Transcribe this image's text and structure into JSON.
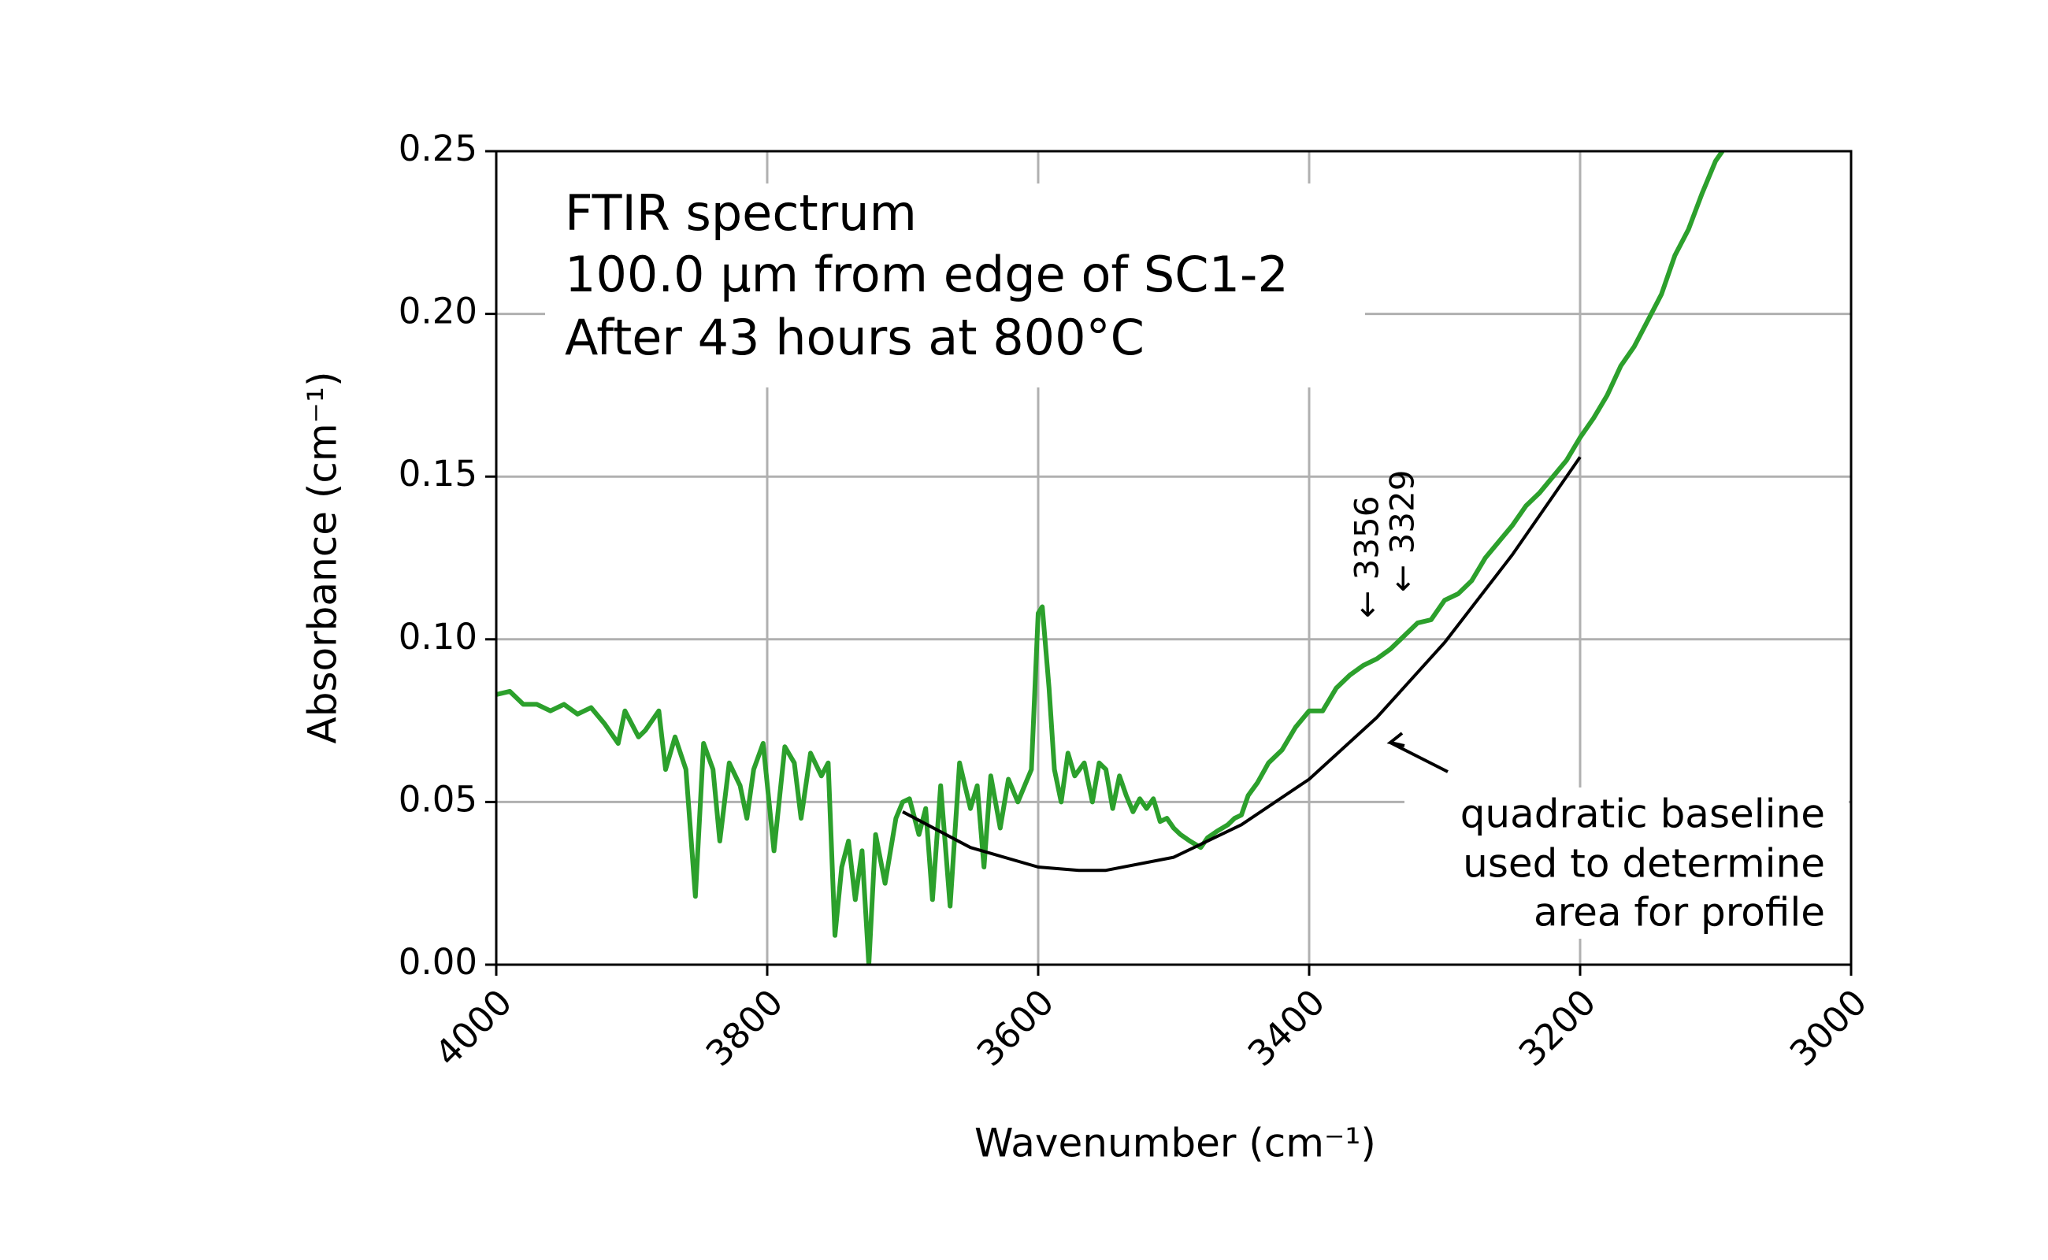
{
  "chart_data": {
    "type": "line",
    "xlabel": "Wavenumber (cm⁻¹)",
    "ylabel": "Absorbance (cm⁻¹)",
    "xlim": [
      4000,
      3000
    ],
    "ylim": [
      0,
      0.25
    ],
    "xticks": [
      4000,
      3800,
      3600,
      3400,
      3200,
      3000
    ],
    "yticks": [
      {
        "value": 0,
        "label": "0.00"
      },
      0.05,
      {
        "value": 0.1,
        "label": "0.10"
      },
      0.15,
      {
        "value": 0.2,
        "label": "0.20"
      },
      0.25
    ],
    "grid": true,
    "series": [
      {
        "color": "#2ca02c",
        "x": [
          4000,
          3990,
          3980,
          3970,
          3960,
          3950,
          3940,
          3930,
          3920,
          3910,
          3905,
          3895,
          3890,
          3880,
          3875,
          3868,
          3860,
          3853,
          3847,
          3840,
          3835,
          3828,
          3820,
          3815,
          3810,
          3803,
          3795,
          3787,
          3780,
          3775,
          3768,
          3760,
          3755,
          3750,
          3745,
          3740,
          3735,
          3730,
          3725,
          3720,
          3713,
          3705,
          3700,
          3695,
          3688,
          3683,
          3678,
          3672,
          3665,
          3658,
          3650,
          3645,
          3640,
          3635,
          3628,
          3622,
          3615,
          3610,
          3605,
          3600,
          3597,
          3592,
          3588,
          3583,
          3578,
          3573,
          3566,
          3560,
          3555,
          3550,
          3545,
          3540,
          3535,
          3530,
          3525,
          3520,
          3515,
          3510,
          3505,
          3500,
          3495,
          3488,
          3480,
          3475,
          3468,
          3460,
          3455,
          3450,
          3445,
          3438,
          3430,
          3420,
          3410,
          3400,
          3390,
          3380,
          3370,
          3360,
          3350,
          3340,
          3330,
          3320,
          3310,
          3300,
          3290,
          3280,
          3270,
          3260,
          3250,
          3240,
          3230,
          3220,
          3210,
          3200,
          3190,
          3180,
          3170,
          3160,
          3150,
          3140,
          3130,
          3120,
          3110,
          3100,
          3095
        ],
        "values": [
          0.083,
          0.084,
          0.08,
          0.08,
          0.078,
          0.08,
          0.077,
          0.079,
          0.074,
          0.068,
          0.078,
          0.07,
          0.072,
          0.078,
          0.06,
          0.07,
          0.06,
          0.021,
          0.068,
          0.06,
          0.038,
          0.062,
          0.055,
          0.045,
          0.06,
          0.068,
          0.035,
          0.067,
          0.062,
          0.045,
          0.065,
          0.058,
          0.062,
          0.009,
          0.03,
          0.038,
          0.02,
          0.035,
          0.0,
          0.04,
          0.025,
          0.045,
          0.05,
          0.051,
          0.04,
          0.048,
          0.02,
          0.055,
          0.018,
          0.062,
          0.048,
          0.055,
          0.03,
          0.058,
          0.042,
          0.057,
          0.05,
          0.055,
          0.06,
          0.108,
          0.11,
          0.085,
          0.06,
          0.05,
          0.065,
          0.058,
          0.062,
          0.05,
          0.062,
          0.06,
          0.048,
          0.058,
          0.052,
          0.047,
          0.051,
          0.048,
          0.051,
          0.044,
          0.045,
          0.042,
          0.04,
          0.038,
          0.036,
          0.039,
          0.041,
          0.043,
          0.045,
          0.046,
          0.052,
          0.056,
          0.062,
          0.066,
          0.073,
          0.078,
          0.078,
          0.085,
          0.089,
          0.092,
          0.094,
          0.097,
          0.101,
          0.105,
          0.106,
          0.112,
          0.114,
          0.118,
          0.125,
          0.13,
          0.135,
          0.141,
          0.145,
          0.15,
          0.155,
          0.162,
          0.168,
          0.175,
          0.184,
          0.19,
          0.198,
          0.206,
          0.218,
          0.226,
          0.237,
          0.247,
          0.25
        ]
      },
      {
        "color": "#000000",
        "x": [
          3700,
          3650,
          3600,
          3570,
          3550,
          3500,
          3450,
          3400,
          3350,
          3300,
          3250,
          3200
        ],
        "values": [
          0.047,
          0.036,
          0.03,
          0.029,
          0.029,
          0.033,
          0.043,
          0.057,
          0.076,
          0.099,
          0.126,
          0.156
        ]
      }
    ],
    "annotations": [
      {
        "lines": [
          "FTIR spectrum",
          "100.0 μm from edge of SC1-2",
          "After 43 hours at 800°C"
        ]
      },
      {
        "text": "← 3356"
      },
      {
        "text": "← 3329"
      },
      {
        "lines": [
          "quadratic baseline",
          "used to determine",
          "area for profile"
        ]
      }
    ]
  }
}
